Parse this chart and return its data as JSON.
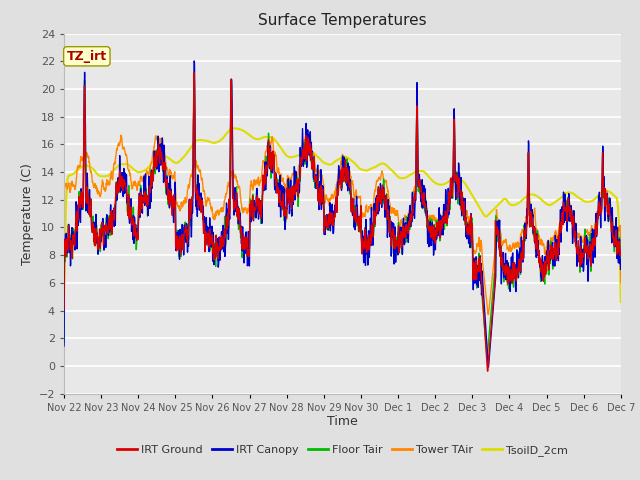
{
  "title": "Surface Temperatures",
  "xlabel": "Time",
  "ylabel": "Temperature (C)",
  "ylim": [
    -2,
    24
  ],
  "yticks": [
    -2,
    0,
    2,
    4,
    6,
    8,
    10,
    12,
    14,
    16,
    18,
    20,
    22,
    24
  ],
  "x_labels": [
    "Nov 22",
    "Nov 23",
    "Nov 24",
    "Nov 25",
    "Nov 26",
    "Nov 27",
    "Nov 28",
    "Nov 29",
    "Nov 30",
    "Dec 1",
    "Dec 2",
    "Dec 3",
    "Dec 4",
    "Dec 5",
    "Dec 6",
    "Dec 7"
  ],
  "series": [
    {
      "name": "IRT Ground",
      "color": "#dd0000"
    },
    {
      "name": "IRT Canopy",
      "color": "#0000cc"
    },
    {
      "name": "Floor Tair",
      "color": "#00bb00"
    },
    {
      "name": "Tower TAir",
      "color": "#ff8800"
    },
    {
      "name": "TsoilD_2cm",
      "color": "#dddd00"
    }
  ],
  "annotation_text": "TZ_irt",
  "annotation_color": "#aa0000",
  "annotation_bg": "#ffffcc",
  "annotation_border": "#999900",
  "fig_bg": "#e0e0e0",
  "plot_bg": "#e8e8e8",
  "grid_color": "#ffffff",
  "title_fontsize": 11,
  "label_fontsize": 9,
  "tick_fontsize": 8,
  "legend_fontsize": 8,
  "line_width": 1.0
}
